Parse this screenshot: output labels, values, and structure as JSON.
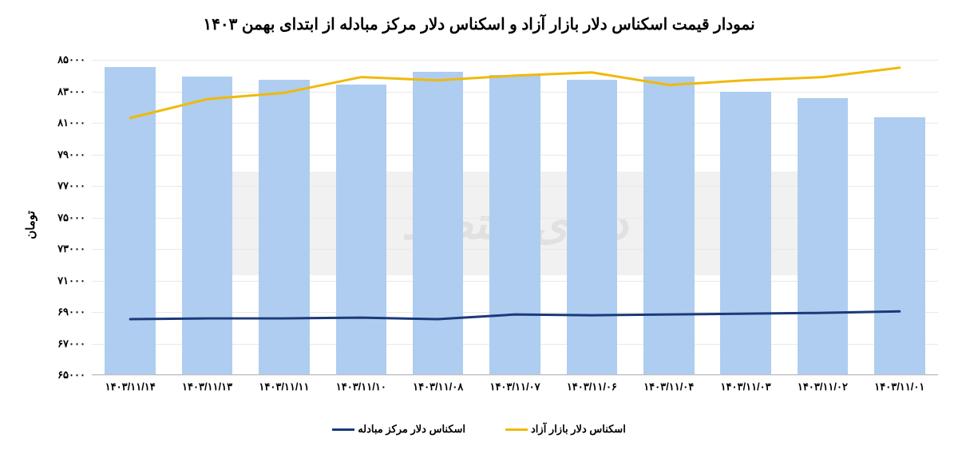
{
  "chart": {
    "type": "bar+line",
    "title": "نمودار قیمت اسکناس دلار بازار آزاد و اسکناس دلار مرکز مبادله از ابتدای بهمن ۱۴۰۳",
    "title_fontsize": 20,
    "y_axis_label": "تومان",
    "y_axis_label_fontsize": 15,
    "background_color": "#ffffff",
    "grid_color": "#e8e8e8",
    "axis_color": "#bfbfbf",
    "tick_fontsize": 13,
    "ylim": [
      65000,
      85000
    ],
    "ytick_step": 2000,
    "y_ticks": [
      "۶۵۰۰۰",
      "۶۷۰۰۰",
      "۶۹۰۰۰",
      "۷۱۰۰۰",
      "۷۳۰۰۰",
      "۷۵۰۰۰",
      "۷۷۰۰۰",
      "۷۹۰۰۰",
      "۸۱۰۰۰",
      "۸۳۰۰۰",
      "۸۵۰۰۰"
    ],
    "categories": [
      "۱۴۰۳/۱۱/۰۱",
      "۱۴۰۳/۱۱/۰۲",
      "۱۴۰۳/۱۱/۰۳",
      "۱۴۰۳/۱۱/۰۴",
      "۱۴۰۳/۱۱/۰۶",
      "۱۴۰۳/۱۱/۰۷",
      "۱۴۰۳/۱۱/۰۸",
      "۱۴۰۳/۱۱/۱۰",
      "۱۴۰۳/۱۱/۱۱",
      "۱۴۰۳/۱۱/۱۳",
      "۱۴۰۳/۱۱/۱۴"
    ],
    "bars": {
      "color": "#aecdf0",
      "values": [
        81300,
        82500,
        82900,
        83900,
        83700,
        84000,
        84200,
        83400,
        83700,
        83900,
        84500
      ]
    },
    "line_free": {
      "name": "اسکناس دلار بازار آزاد",
      "color": "#f0b90b",
      "width": 3,
      "values": [
        81300,
        82500,
        82900,
        83900,
        83700,
        84000,
        84200,
        83400,
        83700,
        83900,
        84500
      ]
    },
    "line_exchange": {
      "name": "اسکناس دلار مرکز مبادله",
      "color": "#1b3a7a",
      "width": 3,
      "values": [
        68500,
        68550,
        68550,
        68600,
        68500,
        68800,
        68750,
        68800,
        68850,
        68900,
        69000
      ]
    },
    "legend_fontsize": 13,
    "watermark_text": "دنیای اقتصاد"
  }
}
